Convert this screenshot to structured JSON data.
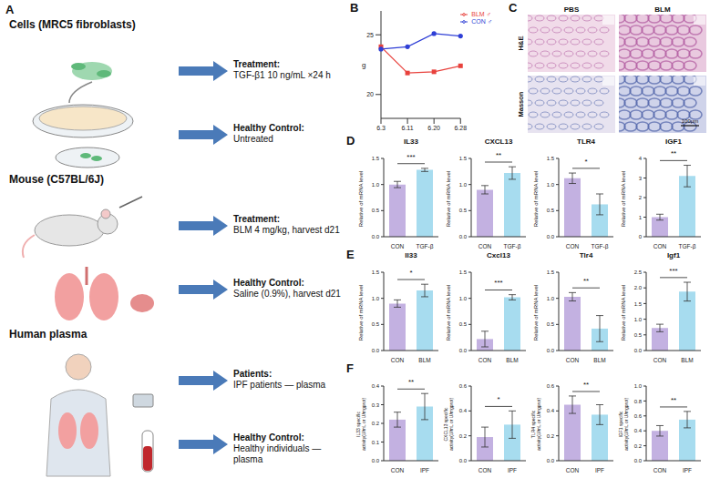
{
  "letters": [
    "A",
    "B",
    "C",
    "D",
    "E",
    "F"
  ],
  "diagram": {
    "groups": [
      {
        "title": "Cells (MRC5 fibroblasts)",
        "items": [
          {
            "head": "Treatment:",
            "text": "TGF-β1 10 ng/mL ×24 h"
          },
          {
            "head": "Healthy Control:",
            "text": "Untreated"
          }
        ]
      },
      {
        "title": "Mouse (C57BL/6J)",
        "items": [
          {
            "head": "Treatment:",
            "text": "BLM 4 mg/kg, harvest d21"
          },
          {
            "head": "Healthy Control:",
            "text": "Saline (0.9%), harvest d21"
          }
        ]
      },
      {
        "title": "Human plasma",
        "items": [
          {
            "head": "Patients:",
            "text": "IPF patients — plasma"
          },
          {
            "head": "Healthy Control:",
            "text": "Healthy individuals — plasma"
          }
        ]
      }
    ]
  },
  "images": {
    "columns": [
      "PBS",
      "BLM"
    ],
    "rows": [
      "H&E",
      "Masson"
    ],
    "scale_bar": "100μm"
  },
  "chart_data": [
    {
      "type": "line",
      "ylabel": "g",
      "categories": [
        "6.3",
        "6.11",
        "6.20",
        "6.28"
      ],
      "series": [
        {
          "name": "BLM ♂",
          "color": "#e8413c",
          "marker": "square",
          "values": [
            24.0,
            21.8,
            21.9,
            22.4
          ]
        },
        {
          "name": "CON ♂",
          "color": "#2f3fd6",
          "marker": "circle",
          "values": [
            23.8,
            24.0,
            25.1,
            24.9
          ]
        }
      ],
      "ylim": [
        18,
        27
      ],
      "yticks": [
        20,
        25
      ],
      "grid": false,
      "legend": "upper right"
    },
    {
      "type": "bar",
      "title": "IL33",
      "ylabel": "Relative of mRNA level",
      "categories": [
        "CON",
        "TGF-β"
      ],
      "values": [
        1.0,
        1.28
      ],
      "errors": [
        0.06,
        0.03
      ],
      "colors": [
        "#c3b1e1",
        "#a7dcef"
      ],
      "ylim": [
        0,
        1.5
      ],
      "yticks": [
        {
          "value": 0,
          "label": "0.0"
        },
        {
          "value": 0.5,
          "label": "0.5"
        },
        {
          "value": 1,
          "label": "1.0"
        },
        {
          "value": 1.5,
          "label": "1.5"
        }
      ],
      "annotation": "***",
      "grid": false
    },
    {
      "type": "bar",
      "title": "CXCL13",
      "ylabel": "Relative of mRNA level",
      "categories": [
        "CON",
        "TGF-β"
      ],
      "values": [
        0.9,
        1.22
      ],
      "errors": [
        0.08,
        0.12
      ],
      "colors": [
        "#c3b1e1",
        "#a7dcef"
      ],
      "ylim": [
        0,
        1.5
      ],
      "yticks": [
        {
          "value": 0,
          "label": "0.0"
        },
        {
          "value": 0.5,
          "label": "0.5"
        },
        {
          "value": 1,
          "label": "1.0"
        },
        {
          "value": 1.5,
          "label": "1.5"
        }
      ],
      "annotation": "**",
      "grid": false
    },
    {
      "type": "bar",
      "title": "TLR4",
      "ylabel": "Relative of mRNA level",
      "categories": [
        "CON",
        "TGF-β"
      ],
      "values": [
        1.12,
        0.62
      ],
      "errors": [
        0.1,
        0.2
      ],
      "colors": [
        "#c3b1e1",
        "#a7dcef"
      ],
      "ylim": [
        0,
        1.5
      ],
      "yticks": [
        {
          "value": 0,
          "label": "0.0"
        },
        {
          "value": 0.5,
          "label": "0.5"
        },
        {
          "value": 1,
          "label": "1.0"
        },
        {
          "value": 1.5,
          "label": "1.5"
        }
      ],
      "annotation": "*",
      "grid": false
    },
    {
      "type": "bar",
      "title": "IGF1",
      "ylabel": "Relative of mRNA level",
      "categories": [
        "CON",
        "TGF-β"
      ],
      "values": [
        1.0,
        3.1
      ],
      "errors": [
        0.15,
        0.55
      ],
      "colors": [
        "#c3b1e1",
        "#a7dcef"
      ],
      "ylim": [
        0,
        4
      ],
      "yticks": [
        0,
        1,
        2,
        3,
        4
      ],
      "annotation": "**",
      "grid": false
    },
    {
      "type": "bar",
      "title": "Il33",
      "ylabel": "Relative of mRNA level",
      "categories": [
        "CON",
        "BLM"
      ],
      "values": [
        0.9,
        1.15
      ],
      "errors": [
        0.07,
        0.12
      ],
      "colors": [
        "#c3b1e1",
        "#a7dcef"
      ],
      "ylim": [
        0,
        1.5
      ],
      "yticks": [
        {
          "value": 0,
          "label": "0.0"
        },
        {
          "value": 0.5,
          "label": "0.5"
        },
        {
          "value": 1,
          "label": "1.0"
        },
        {
          "value": 1.5,
          "label": "1.5"
        }
      ],
      "annotation": "*",
      "grid": false
    },
    {
      "type": "bar",
      "title": "Cxcl13",
      "ylabel": "Relative of mRNA level",
      "categories": [
        "CON",
        "BLM"
      ],
      "values": [
        0.22,
        1.02
      ],
      "errors": [
        0.15,
        0.05
      ],
      "colors": [
        "#c3b1e1",
        "#a7dcef"
      ],
      "ylim": [
        0,
        1.5
      ],
      "yticks": [
        {
          "value": 0,
          "label": "0.0"
        },
        {
          "value": 0.5,
          "label": "0.5"
        },
        {
          "value": 1,
          "label": "1.0"
        },
        {
          "value": 1.5,
          "label": "1.5"
        }
      ],
      "annotation": "***",
      "grid": false
    },
    {
      "type": "bar",
      "title": "Tlr4",
      "ylabel": "Relative of mRNA level",
      "categories": [
        "CON",
        "BLM"
      ],
      "values": [
        1.03,
        0.42
      ],
      "errors": [
        0.08,
        0.25
      ],
      "colors": [
        "#c3b1e1",
        "#a7dcef"
      ],
      "ylim": [
        0,
        1.5
      ],
      "yticks": [
        {
          "value": 0,
          "label": "0.0"
        },
        {
          "value": 0.5,
          "label": "0.5"
        },
        {
          "value": 1,
          "label": "1.0"
        },
        {
          "value": 1.5,
          "label": "1.5"
        }
      ],
      "annotation": "**",
      "grid": false
    },
    {
      "type": "bar",
      "title": "Igf1",
      "ylabel": "Relative of mRNA level",
      "categories": [
        "CON",
        "BLM"
      ],
      "values": [
        0.72,
        1.88
      ],
      "errors": [
        0.12,
        0.3
      ],
      "colors": [
        "#c3b1e1",
        "#a7dcef"
      ],
      "ylim": [
        0,
        2.5
      ],
      "yticks": [
        {
          "value": 0,
          "label": "0.0"
        },
        {
          "value": 0.5,
          "label": "0.5"
        },
        {
          "value": 1,
          "label": "1.0"
        },
        {
          "value": 1.5,
          "label": "1.5"
        },
        {
          "value": 2,
          "label": "2.0"
        },
        {
          "value": 2.5,
          "label": "2.5"
        }
      ],
      "annotation": "***",
      "grid": false
    },
    {
      "type": "bar",
      "ylabel": "IL33 specific activity(U/mL or U/mgprot)",
      "categories": [
        "CON",
        "IPF"
      ],
      "values": [
        0.22,
        0.29
      ],
      "errors": [
        0.04,
        0.07
      ],
      "colors": [
        "#c3b1e1",
        "#a7dcef"
      ],
      "ylim": [
        0,
        0.4
      ],
      "yticks": [
        {
          "value": 0,
          "label": "0.0"
        },
        {
          "value": 0.1,
          "label": "0.1"
        },
        {
          "value": 0.2,
          "label": "0.2"
        },
        {
          "value": 0.3,
          "label": "0.3"
        },
        {
          "value": 0.4,
          "label": "0.4"
        }
      ],
      "annotation": "**",
      "grid": false
    },
    {
      "type": "bar",
      "ylabel": "CXCL13 specific activity(U/mL or U/mgprot)",
      "categories": [
        "CON",
        "IPF"
      ],
      "values": [
        0.19,
        0.29
      ],
      "errors": [
        0.08,
        0.11
      ],
      "colors": [
        "#c3b1e1",
        "#a7dcef"
      ],
      "ylim": [
        0,
        0.6
      ],
      "yticks": [
        {
          "value": 0,
          "label": "0.0"
        },
        {
          "value": 0.2,
          "label": "0.2"
        },
        {
          "value": 0.4,
          "label": "0.4"
        },
        {
          "value": 0.6,
          "label": "0.6"
        }
      ],
      "annotation": "*",
      "grid": false
    },
    {
      "type": "bar",
      "ylabel": "TLR4 specific activity(U/mL or U/mgprot)",
      "categories": [
        "CON",
        "IPF"
      ],
      "values": [
        0.45,
        0.37
      ],
      "errors": [
        0.07,
        0.08
      ],
      "colors": [
        "#c3b1e1",
        "#a7dcef"
      ],
      "ylim": [
        0,
        0.6
      ],
      "yticks": [
        {
          "value": 0,
          "label": "0.0"
        },
        {
          "value": 0.2,
          "label": "0.2"
        },
        {
          "value": 0.4,
          "label": "0.4"
        },
        {
          "value": 0.6,
          "label": "0.6"
        }
      ],
      "annotation": "**",
      "grid": false
    },
    {
      "type": "bar",
      "ylabel": "IGF1 specific activity(U/mL or U/mgprot)",
      "categories": [
        "CON",
        "IPF"
      ],
      "values": [
        0.4,
        0.55
      ],
      "errors": [
        0.07,
        0.11
      ],
      "colors": [
        "#c3b1e1",
        "#a7dcef"
      ],
      "ylim": [
        0,
        1
      ],
      "yticks": [
        {
          "value": 0,
          "label": "0.0"
        },
        {
          "value": 0.2,
          "label": "0.2"
        },
        {
          "value": 0.4,
          "label": "0.4"
        },
        {
          "value": 0.6,
          "label": "0.6"
        },
        {
          "value": 0.8,
          "label": "0.8"
        },
        {
          "value": 1,
          "label": "1.0"
        }
      ],
      "annotation": "**",
      "grid": false
    }
  ]
}
